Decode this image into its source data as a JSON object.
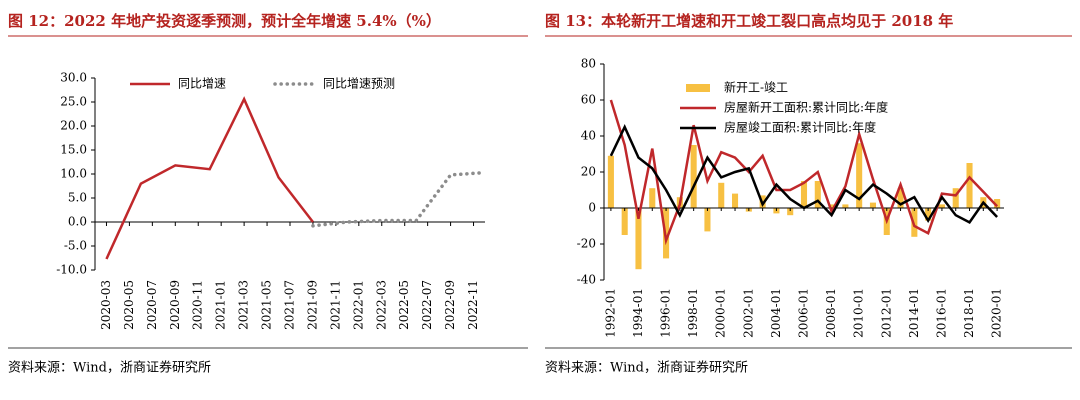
{
  "chart_data": [
    {
      "type": "line",
      "title": "图 12：2022 年地产投资逐季预测，预计全年增速 5.4%（%）",
      "source": "资料来源：Wind，浙商证券研究所",
      "xlim": [
        "2020-02",
        "2022-12"
      ],
      "xticks": [
        "2020-03",
        "2020-05",
        "2020-07",
        "2020-09",
        "2020-11",
        "2021-01",
        "2021-03",
        "2021-05",
        "2021-07",
        "2021-09",
        "2021-11",
        "2022-01",
        "2022-03",
        "2022-05",
        "2022-07",
        "2022-09",
        "2022-11"
      ],
      "ylim": [
        -10,
        30
      ],
      "yticks": [
        {
          "value": -10,
          "label": "-10.0"
        },
        {
          "value": -5,
          "label": "-5.0"
        },
        {
          "value": 0,
          "label": "0.0"
        },
        {
          "value": 5,
          "label": "5.0"
        },
        {
          "value": 10,
          "label": "10.0"
        },
        {
          "value": 15,
          "label": "15.0"
        },
        {
          "value": 20,
          "label": "20.0"
        },
        {
          "value": 25,
          "label": "25.0"
        },
        {
          "value": 30,
          "label": "30.0"
        }
      ],
      "legend": "top",
      "series": [
        {
          "name": "同比增速",
          "color": "#c0282b",
          "style": "solid",
          "x": [
            "2020-03",
            "2020-06",
            "2020-09",
            "2020-12",
            "2021-03",
            "2021-06",
            "2021-09"
          ],
          "values": [
            -7.7,
            8.0,
            11.8,
            11.0,
            25.6,
            9.3,
            0.0
          ]
        },
        {
          "name": "同比增速预测",
          "color": "#8c8c8c",
          "style": "dotted",
          "x": [
            "2021-09",
            "2021-12",
            "2022-03",
            "2022-06",
            "2022-09",
            "2022-12"
          ],
          "values": [
            -0.8,
            0.0,
            0.3,
            0.3,
            9.8,
            10.3
          ]
        }
      ]
    },
    {
      "type": "combo",
      "title": "图 13：本轮新开工增速和开工竣工裂口高点均见于 2018 年",
      "source": "资料来源：Wind，浙商证券研究所",
      "categories": [
        "1992-01",
        null,
        "1994-01",
        null,
        "1996-01",
        null,
        "1998-01",
        null,
        "2000-01",
        null,
        "2002-01",
        null,
        "2004-01",
        null,
        "2006-01",
        null,
        "2008-01",
        null,
        "2010-01",
        null,
        "2012-01",
        null,
        "2014-01",
        null,
        "2016-01",
        null,
        "2018-01",
        null,
        "2020-01"
      ],
      "ylim": [
        -40,
        80
      ],
      "yticks": [
        -40,
        -20,
        0,
        20,
        40,
        60,
        80
      ],
      "legend": "upper left",
      "series": [
        {
          "name": "新开工-竣工",
          "color": "#f7c042",
          "kind": "bar",
          "values": [
            29,
            -15,
            -34,
            11,
            -28,
            6,
            35,
            -13,
            14,
            8,
            -2,
            7,
            -3,
            -4,
            15,
            15,
            2,
            2,
            36,
            3,
            -15,
            11,
            -16,
            -7,
            2,
            11,
            25,
            6,
            5
          ]
        },
        {
          "name": "房屋新开工面积:累计同比:年度",
          "color": "#c0282b",
          "kind": "line",
          "values": [
            60,
            35,
            -6,
            33,
            -18,
            2,
            46,
            15,
            31,
            28,
            20,
            29,
            10,
            10,
            14,
            20,
            -2,
            12,
            41,
            16,
            -7,
            13,
            -10,
            -14,
            8,
            7,
            17,
            9,
            1
          ]
        },
        {
          "name": "房屋竣工面积:累计同比:年度",
          "color": "#000000",
          "kind": "line",
          "values": [
            29,
            45,
            28,
            22,
            10,
            -4,
            12,
            28,
            17,
            20,
            22,
            2,
            13,
            5,
            0,
            4,
            -4,
            10,
            5,
            13,
            8,
            2,
            6,
            -7,
            6,
            -4,
            -8,
            3,
            -5
          ]
        }
      ]
    }
  ]
}
